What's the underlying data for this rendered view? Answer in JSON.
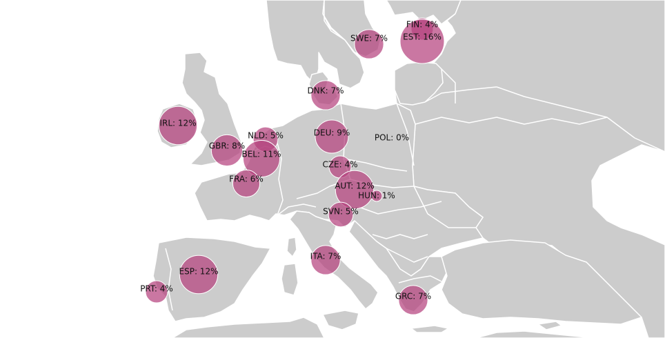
{
  "map": {
    "colors": {
      "land": "#cccccc",
      "sea": "#ffffff",
      "bubble": "#b5427e"
    },
    "countries": [
      {
        "code": "FIN",
        "label": "FIN: 4%",
        "value": 4
      },
      {
        "code": "EST",
        "label": "EST: 16%",
        "value": 16
      },
      {
        "code": "SWE",
        "label": "SWE: 7%",
        "value": 7
      },
      {
        "code": "DNK",
        "label": "DNK: 7%",
        "value": 7
      },
      {
        "code": "IRL",
        "label": "IRL: 12%",
        "value": 12
      },
      {
        "code": "NLD",
        "label": "NLD: 5%",
        "value": 5
      },
      {
        "code": "DEU",
        "label": "DEU: 9%",
        "value": 9
      },
      {
        "code": "POL",
        "label": "POL: 0%",
        "value": 0
      },
      {
        "code": "GBR",
        "label": "GBR: 8%",
        "value": 8
      },
      {
        "code": "BEL",
        "label": "BEL: 11%",
        "value": 11
      },
      {
        "code": "CZE",
        "label": "CZE: 4%",
        "value": 4
      },
      {
        "code": "FRA",
        "label": "FRA: 6%",
        "value": 6
      },
      {
        "code": "AUT",
        "label": "AUT: 12%",
        "value": 12
      },
      {
        "code": "HUN",
        "label": "HUN: 1%",
        "value": 1
      },
      {
        "code": "SVN",
        "label": "SVN: 5%",
        "value": 5
      },
      {
        "code": "ITA",
        "label": "ITA: 7%",
        "value": 7
      },
      {
        "code": "ESP",
        "label": "ESP: 12%",
        "value": 12
      },
      {
        "code": "PRT",
        "label": "PRT: 4%",
        "value": 4
      },
      {
        "code": "GRC",
        "label": "GRC: 7%",
        "value": 7
      }
    ]
  }
}
